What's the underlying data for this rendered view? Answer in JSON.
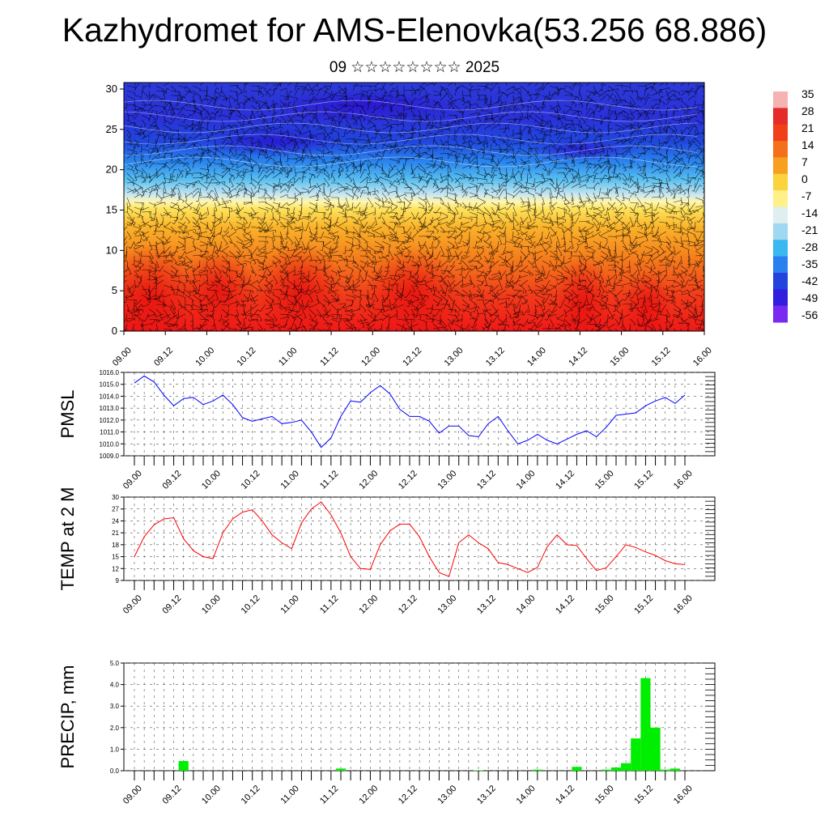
{
  "title": "Kazhydromet for AMS-Elenovka(53.256 68.886)",
  "subtitle": "09 ☆☆☆☆☆☆☆☆ 2025",
  "colors": {
    "pressure_line": "#0000ff",
    "temp_line": "#ff0000",
    "precip_bar": "#00ee00"
  },
  "chart_data": [
    {
      "type": "heatmap",
      "name": "vertical-cross-section",
      "x_ticks": [
        "09.00",
        "09.12",
        "10.00",
        "10.12",
        "11.00",
        "11.12",
        "12.00",
        "12.12",
        "13.00",
        "13.12",
        "14.00",
        "14.12",
        "15.00",
        "15.12",
        "16.00"
      ],
      "y_ticks": [
        "0",
        "5",
        "10",
        "15",
        "20",
        "25",
        "30"
      ],
      "ylim": [
        0,
        30.8
      ],
      "colorbar_labels": [
        "35",
        "28",
        "21",
        "14",
        "7",
        "0",
        "-7",
        "-14",
        "-21",
        "-28",
        "-35",
        "-42",
        "-49",
        "-56"
      ],
      "colorbar_colors": [
        "#f5b3b3",
        "#e62b2b",
        "#f0401a",
        "#f5701a",
        "#f7a020",
        "#fbd33d",
        "#fff08a",
        "#dfeff0",
        "#9fd8f0",
        "#3cb8f0",
        "#2a80ee",
        "#2244dd",
        "#3020dd",
        "#7a2af0"
      ]
    },
    {
      "type": "line",
      "name": "pmsl",
      "ylabel": "PMSL",
      "ylim": [
        1009,
        1016
      ],
      "y_ticks": [
        "1016.0",
        "1015.0",
        "1014.0",
        "1013.0",
        "1012.0",
        "1011.0",
        "1010.0",
        "1009.0"
      ],
      "x_ticks": [
        "09.00",
        "09.12",
        "10.00",
        "10.12",
        "11.00",
        "11.12",
        "12.00",
        "12.12",
        "13.00",
        "13.12",
        "14.00",
        "14.12",
        "15.00",
        "15.12",
        "16.00"
      ],
      "values": [
        1015.1,
        1015.7,
        1015.2,
        1014.1,
        1013.2,
        1013.8,
        1013.9,
        1013.3,
        1013.6,
        1014.1,
        1013.3,
        1012.2,
        1011.9,
        1012.1,
        1012.3,
        1011.7,
        1011.8,
        1012.0,
        1011.0,
        1009.7,
        1010.5,
        1012.3,
        1013.6,
        1013.5,
        1014.3,
        1014.9,
        1014.2,
        1012.9,
        1012.3,
        1012.3,
        1011.9,
        1010.9,
        1011.5,
        1011.5,
        1010.7,
        1010.6,
        1011.7,
        1012.3,
        1011.1,
        1010.0,
        1010.3,
        1010.8,
        1010.3,
        1010.0,
        1010.4,
        1010.8,
        1011.1,
        1010.6,
        1011.4,
        1012.4,
        1012.5,
        1012.6,
        1013.2,
        1013.6,
        1013.9,
        1013.4,
        1014.1
      ]
    },
    {
      "type": "line",
      "name": "temp-2m",
      "ylabel": "TEMP at 2 M",
      "ylim": [
        9,
        30
      ],
      "y_ticks": [
        "30",
        "27",
        "24",
        "21",
        "18",
        "15",
        "12",
        "9"
      ],
      "x_ticks": [
        "09.00",
        "09.12",
        "10.00",
        "10.12",
        "11.00",
        "11.12",
        "12.00",
        "12.12",
        "13.00",
        "13.12",
        "14.00",
        "14.12",
        "15.00",
        "15.12",
        "16.00"
      ],
      "values": [
        15,
        20,
        23,
        24.5,
        24.8,
        19.5,
        16.5,
        15,
        14.5,
        21,
        24.5,
        26.2,
        26.8,
        24,
        20.5,
        18.5,
        17,
        23.5,
        27,
        28.8,
        25.5,
        21,
        15,
        12,
        11.8,
        18,
        21.5,
        23.2,
        23.2,
        20,
        15,
        11,
        10,
        18.5,
        20.5,
        18.5,
        17,
        13.5,
        13,
        12,
        11,
        12.3,
        17.5,
        20.5,
        18,
        17.8,
        14.5,
        11.5,
        12.2,
        15,
        18,
        17.3,
        16.2,
        15.3,
        14,
        13.2,
        13
      ]
    },
    {
      "type": "bar",
      "name": "precipitation",
      "ylabel": "PRECIP, mm",
      "ylim": [
        0,
        5
      ],
      "y_ticks": [
        "5.0",
        "4.0",
        "3.0",
        "2.0",
        "1.0",
        "0.0"
      ],
      "x_ticks": [
        "09.00",
        "09.12",
        "10.00",
        "10.12",
        "11.00",
        "11.12",
        "12.00",
        "12.12",
        "13.00",
        "13.12",
        "14.00",
        "14.12",
        "15.00",
        "15.12",
        "16.00"
      ],
      "values": [
        0,
        0,
        0,
        0,
        0,
        0.45,
        0,
        0,
        0,
        0,
        0,
        0,
        0,
        0,
        0,
        0,
        0,
        0,
        0,
        0,
        0,
        0.1,
        0,
        0,
        0,
        0,
        0,
        0,
        0,
        0,
        0,
        0,
        0,
        0,
        0,
        0.02,
        0,
        0,
        0,
        0,
        0,
        0.05,
        0,
        0,
        0,
        0.18,
        0,
        0,
        0.05,
        0.15,
        0.35,
        1.5,
        4.3,
        2.0,
        0.05,
        0.1,
        0
      ]
    }
  ]
}
